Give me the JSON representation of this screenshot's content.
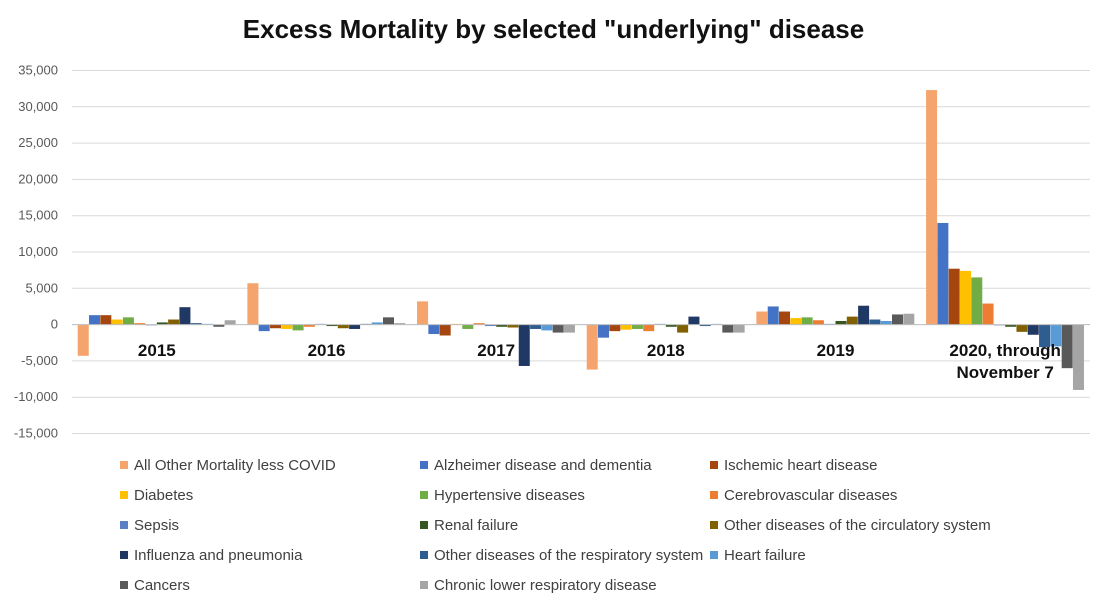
{
  "chart_data": {
    "type": "bar",
    "title": "Excess Mortality by selected \"underlying\" disease",
    "xlabel": "",
    "ylabel": "",
    "ylim": [
      -15000,
      35000
    ],
    "y_ticks": [
      "35,000",
      "30,000",
      "25,000",
      "20,000",
      "15,000",
      "10,000",
      "5,000",
      "0",
      "-5,000",
      "-10,000",
      "-15,000"
    ],
    "y_tick_values": [
      35000,
      30000,
      25000,
      20000,
      15000,
      10000,
      5000,
      0,
      -5000,
      -10000,
      -15000
    ],
    "grid": true,
    "legend_position": "bottom",
    "categories": [
      "2015",
      "2016",
      "2017",
      "2018",
      "2019",
      "2020, through November 7"
    ],
    "series": [
      {
        "name": "All Other Mortality less COVID",
        "color": "#F4A46C",
        "values": [
          -4300,
          5700,
          3200,
          -6200,
          1800,
          32300
        ]
      },
      {
        "name": "Alzheimer disease and dementia",
        "color": "#4472C4",
        "values": [
          1300,
          -900,
          -1300,
          -1800,
          2500,
          14000
        ]
      },
      {
        "name": "Ischemic heart disease",
        "color": "#A5460E",
        "values": [
          1300,
          -500,
          -1500,
          -900,
          1800,
          7700
        ]
      },
      {
        "name": "Diabetes",
        "color": "#FFC000",
        "values": [
          700,
          -600,
          100,
          -700,
          900,
          7400
        ]
      },
      {
        "name": "Hypertensive diseases",
        "color": "#70AD47",
        "values": [
          1000,
          -800,
          -600,
          -600,
          1000,
          6500
        ]
      },
      {
        "name": "Cerebrovascular diseases",
        "color": "#ED7D31",
        "values": [
          200,
          -300,
          200,
          -900,
          600,
          2900
        ]
      },
      {
        "name": "Sepsis",
        "color": "#5B7FC4",
        "values": [
          -100,
          100,
          -200,
          100,
          100,
          -100
        ]
      },
      {
        "name": "Renal failure",
        "color": "#375623",
        "values": [
          300,
          -200,
          -300,
          -300,
          500,
          -300
        ]
      },
      {
        "name": "Other diseases of the circulatory system",
        "color": "#806000",
        "values": [
          700,
          -500,
          -400,
          -1100,
          1100,
          -1000
        ]
      },
      {
        "name": "Influenza and pneumonia",
        "color": "#203864",
        "values": [
          2400,
          -600,
          -5700,
          1100,
          2600,
          -1400
        ]
      },
      {
        "name": "Other diseases of the respiratory system",
        "color": "#2E5D8F",
        "values": [
          200,
          100,
          -600,
          -200,
          700,
          -3100
        ]
      },
      {
        "name": "Heart failure",
        "color": "#5B9BD5",
        "values": [
          100,
          300,
          -800,
          100,
          500,
          -3000
        ]
      },
      {
        "name": "Cancers",
        "color": "#595959",
        "values": [
          -300,
          1000,
          -1100,
          -1100,
          1400,
          -6000
        ]
      },
      {
        "name": "Chronic lower respiratory disease",
        "color": "#A5A5A5",
        "values": [
          600,
          200,
          -1100,
          -1100,
          1500,
          -9000
        ]
      }
    ]
  }
}
